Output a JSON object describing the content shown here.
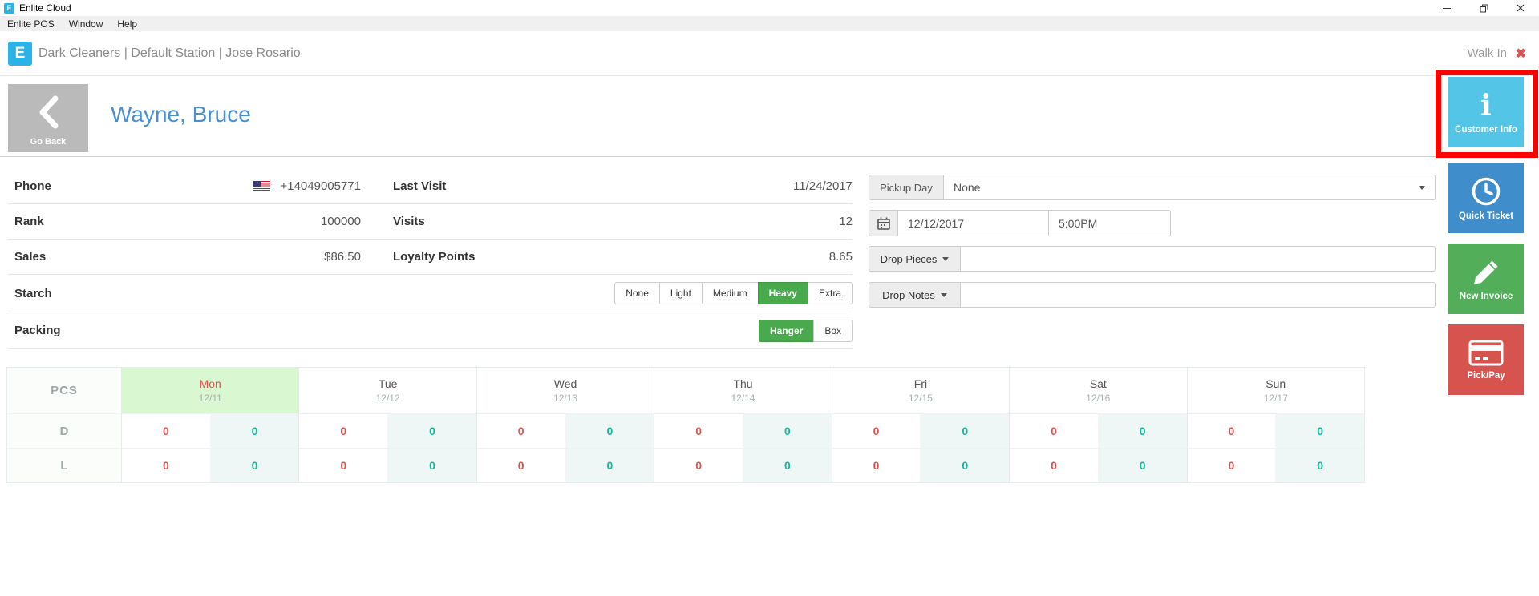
{
  "titlebar": {
    "app_icon_letter": "E",
    "title": "Enlite Cloud"
  },
  "menubar": {
    "items": [
      "Enlite POS",
      "Window",
      "Help"
    ]
  },
  "header": {
    "logo_letter": "E",
    "breadcrumb": "Dark Cleaners | Default Station | Jose Rosario",
    "walk_in_label": "Walk In"
  },
  "toolbar": {
    "go_back_label": "Go Back"
  },
  "customer": {
    "name": "Wayne, Bruce"
  },
  "details": {
    "rows": [
      {
        "label": "Phone",
        "value": "+14049005771",
        "label2": "Last Visit",
        "value2": "11/24/2017"
      },
      {
        "label": "Rank",
        "value": "100000",
        "label2": "Visits",
        "value2": "12"
      },
      {
        "label": "Sales",
        "value": "$86.50",
        "label2": "Loyalty Points",
        "value2": "8.65"
      }
    ],
    "starch": {
      "label": "Starch",
      "options": [
        "None",
        "Light",
        "Medium",
        "Heavy",
        "Extra"
      ],
      "selected": "Heavy"
    },
    "packing": {
      "label": "Packing",
      "options": [
        "Hanger",
        "Box"
      ],
      "selected": "Hanger"
    }
  },
  "pickup_form": {
    "pickup_day_label": "Pickup Day",
    "pickup_day_value": "None",
    "date_value": "12/12/2017",
    "time_value": "5:00PM",
    "drop_pieces_label": "Drop Pieces",
    "drop_notes_label": "Drop Notes"
  },
  "actions": [
    {
      "label": "Customer Info",
      "icon": "info-icon",
      "color": "#53c6e8",
      "highlighted": true
    },
    {
      "label": "Quick Ticket",
      "icon": "clock-icon",
      "color": "#3f8dca",
      "highlighted": false
    },
    {
      "label": "New Invoice",
      "icon": "pencil-icon",
      "color": "#52ae58",
      "highlighted": false
    },
    {
      "label": "Pick/Pay",
      "icon": "credit-card-icon",
      "color": "#d6534e",
      "highlighted": false
    }
  ],
  "schedule": {
    "corner_label": "PCS",
    "row_labels": [
      "D",
      "L"
    ],
    "days": [
      {
        "name": "Mon",
        "date": "12/11",
        "today": true,
        "rows": [
          [
            "0",
            "0"
          ],
          [
            "0",
            "0"
          ]
        ]
      },
      {
        "name": "Tue",
        "date": "12/12",
        "today": false,
        "rows": [
          [
            "0",
            "0"
          ],
          [
            "0",
            "0"
          ]
        ]
      },
      {
        "name": "Wed",
        "date": "12/13",
        "today": false,
        "rows": [
          [
            "0",
            "0"
          ],
          [
            "0",
            "0"
          ]
        ]
      },
      {
        "name": "Thu",
        "date": "12/14",
        "today": false,
        "rows": [
          [
            "0",
            "0"
          ],
          [
            "0",
            "0"
          ]
        ]
      },
      {
        "name": "Fri",
        "date": "12/15",
        "today": false,
        "rows": [
          [
            "0",
            "0"
          ],
          [
            "0",
            "0"
          ]
        ]
      },
      {
        "name": "Sat",
        "date": "12/16",
        "today": false,
        "rows": [
          [
            "0",
            "0"
          ],
          [
            "0",
            "0"
          ]
        ]
      },
      {
        "name": "Sun",
        "date": "12/17",
        "today": false,
        "rows": [
          [
            "0",
            "0"
          ],
          [
            "0",
            "0"
          ]
        ]
      }
    ],
    "value_colors": {
      "left": "#d9534f",
      "right": "#17b798"
    },
    "today_bg": "#d9f7d0"
  },
  "colors": {
    "brand_blue": "#2bb3e8",
    "customer_name_blue": "#4a8fd4",
    "selected_green": "#49a94d",
    "annotation_red": "#ff0000",
    "walkin_x_red": "#d9534f"
  }
}
